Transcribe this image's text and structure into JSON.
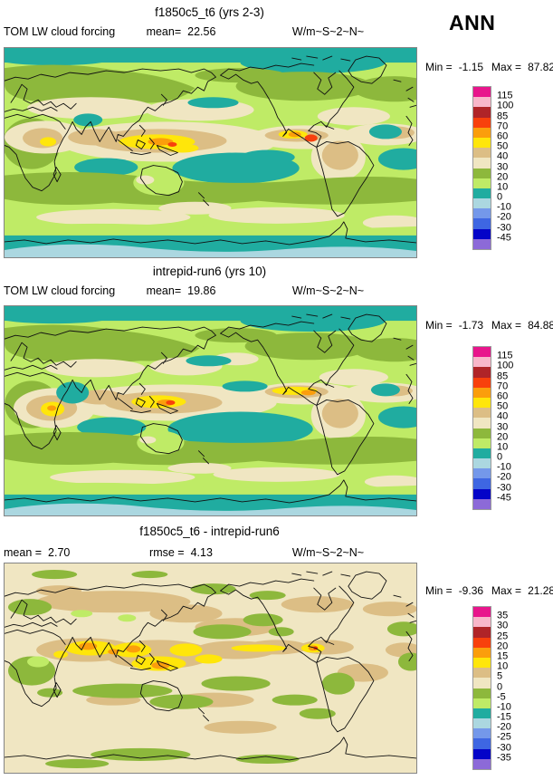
{
  "season_label": "ANN",
  "palette": [
    "#E8168C",
    "#F8B7CA",
    "#B02428",
    "#F8400C",
    "#FB9E0C",
    "#FFE60A",
    "#DCBE85",
    "#F0E6C2",
    "#8DB83C",
    "#BFEB66",
    "#20ACA0",
    "#ABD7E0",
    "#7498EA",
    "#3E66E2",
    "#0404C8",
    "#8C6AD8"
  ],
  "colors": {
    "map_border": "#848484",
    "coastline": "#111111",
    "colorbar_border": "#9a9a9a",
    "background": "#ffffff"
  },
  "panels": [
    {
      "title": "f1850c5_t6 (yrs 2-3)",
      "left": {
        "label": "TOM LW cloud forcing",
        "value": ""
      },
      "center": {
        "label": "mean=",
        "value": "22.56"
      },
      "units": "W/m~S~2~N~",
      "min_label": "Min =",
      "min_value": "-1.15",
      "max_label": "Max =",
      "max_value": "87.82",
      "colorbar_labels": [
        "115",
        "100",
        "85",
        "70",
        "60",
        "50",
        "40",
        "30",
        "20",
        "10",
        "0",
        "-10",
        "-20",
        "-30",
        "-45"
      ]
    },
    {
      "title": "intrepid-run6 (yrs 10)",
      "left": {
        "label": "TOM LW cloud forcing",
        "value": ""
      },
      "center": {
        "label": "mean=",
        "value": "19.86"
      },
      "units": "W/m~S~2~N~",
      "min_label": "Min =",
      "min_value": "-1.73",
      "max_label": "Max =",
      "max_value": "84.88",
      "colorbar_labels": [
        "115",
        "100",
        "85",
        "70",
        "60",
        "50",
        "40",
        "30",
        "20",
        "10",
        "0",
        "-10",
        "-20",
        "-30",
        "-45"
      ]
    },
    {
      "title": "f1850c5_t6 - intrepid-run6",
      "left": {
        "label": "mean =",
        "value": "2.70"
      },
      "center": {
        "label": "rmse =",
        "value": "4.13"
      },
      "units": "W/m~S~2~N~",
      "min_label": "Min =",
      "min_value": "-9.36",
      "max_label": "Max =",
      "max_value": "21.28",
      "colorbar_labels": [
        "35",
        "30",
        "25",
        "20",
        "15",
        "10",
        "5",
        "0",
        "-5",
        "-10",
        "-15",
        "-20",
        "-25",
        "-30",
        "-35"
      ]
    }
  ],
  "chart_data": [
    {
      "type": "heatmap",
      "panel": "top",
      "title": "f1850c5_t6 (yrs 2-3)",
      "variable": "TOM LW cloud forcing",
      "season": "ANN",
      "units": "W/m~S~2~N~",
      "projection": "global latitude-longitude world map (0-360E, 90S-90N)",
      "mean": 22.56,
      "min": -1.15,
      "max": 87.82,
      "contour_levels": [
        -45,
        -30,
        -20,
        -10,
        0,
        10,
        20,
        30,
        40,
        50,
        60,
        70,
        85,
        100,
        115
      ],
      "legend_position": "right"
    },
    {
      "type": "heatmap",
      "panel": "middle",
      "title": "intrepid-run6 (yrs 10)",
      "variable": "TOM LW cloud forcing",
      "season": "ANN",
      "units": "W/m~S~2~N~",
      "projection": "global latitude-longitude world map (0-360E, 90S-90N)",
      "mean": 19.86,
      "min": -1.73,
      "max": 84.88,
      "contour_levels": [
        -45,
        -30,
        -20,
        -10,
        0,
        10,
        20,
        30,
        40,
        50,
        60,
        70,
        85,
        100,
        115
      ],
      "legend_position": "right"
    },
    {
      "type": "heatmap",
      "panel": "bottom",
      "title": "f1850c5_t6 - intrepid-run6",
      "variable": "TOM LW cloud forcing difference",
      "season": "ANN",
      "units": "W/m~S~2~N~",
      "projection": "global latitude-longitude world map (0-360E, 90S-90N)",
      "mean": 2.7,
      "rmse": 4.13,
      "min": -9.36,
      "max": 21.28,
      "contour_levels": [
        -35,
        -30,
        -25,
        -20,
        -15,
        -10,
        -5,
        0,
        5,
        10,
        15,
        20,
        25,
        30,
        35
      ],
      "legend_position": "right"
    }
  ]
}
